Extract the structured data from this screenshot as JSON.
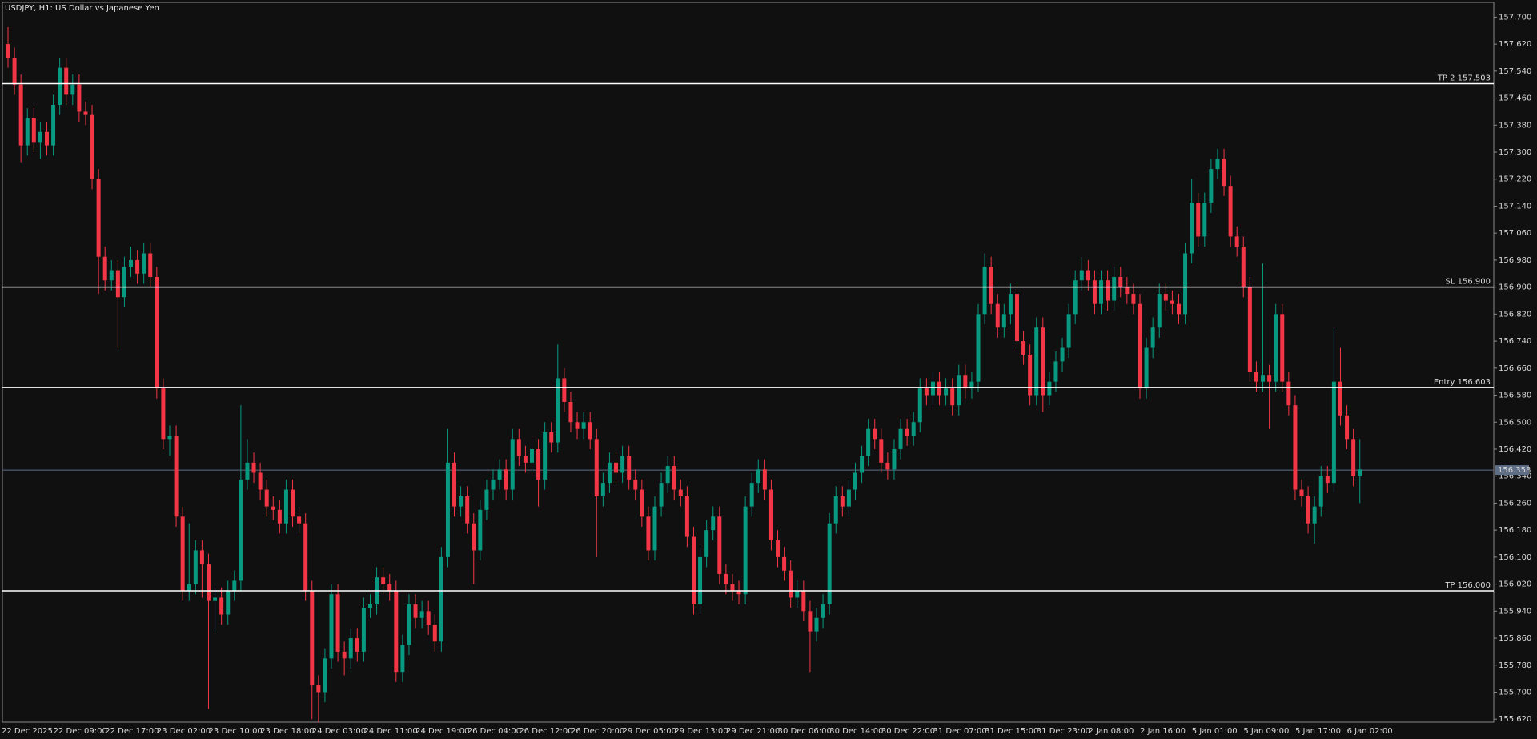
{
  "chart_data": {
    "type": "candlestick",
    "title": "USDJPY, H1:  US Dollar vs Japanese Yen",
    "categories": [
      "22 Dec 2025",
      null,
      null,
      null,
      null,
      null,
      null,
      null,
      "22 Dec 09:00",
      null,
      null,
      null,
      null,
      null,
      null,
      null,
      "22 Dec 17:00",
      null,
      null,
      null,
      null,
      null,
      null,
      null,
      "23 Dec 02:00",
      null,
      null,
      null,
      null,
      null,
      null,
      null,
      "23 Dec 10:00",
      null,
      null,
      null,
      null,
      null,
      null,
      null,
      "23 Dec 18:00",
      null,
      null,
      null,
      null,
      null,
      null,
      null,
      "24 Dec 03:00",
      null,
      null,
      null,
      null,
      null,
      null,
      null,
      "24 Dec 11:00",
      null,
      null,
      null,
      null,
      null,
      null,
      null,
      "24 Dec 19:00",
      null,
      null,
      null,
      null,
      null,
      null,
      null,
      "26 Dec 04:00",
      null,
      null,
      null,
      null,
      null,
      null,
      null,
      "26 Dec 12:00",
      null,
      null,
      null,
      null,
      null,
      null,
      null,
      "26 Dec 20:00",
      null,
      null,
      null,
      null,
      null,
      null,
      null,
      "29 Dec 05:00",
      null,
      null,
      null,
      null,
      null,
      null,
      null,
      "29 Dec 13:00",
      null,
      null,
      null,
      null,
      null,
      null,
      null,
      "29 Dec 21:00",
      null,
      null,
      null,
      null,
      null,
      null,
      null,
      "30 Dec 06:00",
      null,
      null,
      null,
      null,
      null,
      null,
      null,
      "30 Dec 14:00",
      null,
      null,
      null,
      null,
      null,
      null,
      null,
      "30 Dec 22:00",
      null,
      null,
      null,
      null,
      null,
      null,
      null,
      "31 Dec 07:00",
      null,
      null,
      null,
      null,
      null,
      null,
      null,
      "31 Dec 15:00",
      null,
      null,
      null,
      null,
      null,
      null,
      null,
      "31 Dec 23:00",
      null,
      null,
      null,
      null,
      null,
      null,
      null,
      "2 Jan 08:00",
      null,
      null,
      null,
      null,
      null,
      null,
      null,
      "2 Jan 16:00",
      null,
      null,
      null,
      null,
      null,
      null,
      null,
      "5 Jan 01:00",
      null,
      null,
      null,
      null,
      null,
      null,
      null,
      "5 Jan 09:00",
      null,
      null,
      null,
      null,
      null,
      null,
      null,
      "5 Jan 17:00",
      null,
      null,
      null,
      null,
      null,
      null,
      null,
      "6 Jan 02:00",
      null
    ],
    "open": [
      157.62,
      157.58,
      157.5,
      157.32,
      157.4,
      157.33,
      157.36,
      157.32,
      157.44,
      157.55,
      157.47,
      157.5,
      157.42,
      157.41,
      157.22,
      156.99,
      156.92,
      156.95,
      156.87,
      156.96,
      156.98,
      156.94,
      157.0,
      156.93,
      156.6,
      156.45,
      156.46,
      156.22,
      156.0,
      156.02,
      156.12,
      156.08,
      155.97,
      155.98,
      155.93,
      156.0,
      156.03,
      156.33,
      156.38,
      156.35,
      156.3,
      156.25,
      156.24,
      156.2,
      156.3,
      156.22,
      156.2,
      156.0,
      155.72,
      155.7,
      155.8,
      155.99,
      155.82,
      155.8,
      155.86,
      155.82,
      155.95,
      155.96,
      156.04,
      156.02,
      156.0,
      155.76,
      155.84,
      155.96,
      155.92,
      155.94,
      155.9,
      155.85,
      156.1,
      156.38,
      156.25,
      156.28,
      156.2,
      156.12,
      156.24,
      156.3,
      156.33,
      156.36,
      156.3,
      156.45,
      156.4,
      156.38,
      156.42,
      156.33,
      156.47,
      156.44,
      156.63,
      156.56,
      156.5,
      156.48,
      156.5,
      156.45,
      156.28,
      156.32,
      156.38,
      156.35,
      156.4,
      156.33,
      156.3,
      156.22,
      156.12,
      156.25,
      156.32,
      156.37,
      156.3,
      156.28,
      156.16,
      155.96,
      156.1,
      156.18,
      156.22,
      156.05,
      156.02,
      156.0,
      155.99,
      156.25,
      156.32,
      156.36,
      156.3,
      156.15,
      156.1,
      156.06,
      155.98,
      156.0,
      155.94,
      155.88,
      155.92,
      155.96,
      156.2,
      156.28,
      156.25,
      156.3,
      156.35,
      156.4,
      156.48,
      156.45,
      156.38,
      156.36,
      156.42,
      156.48,
      156.46,
      156.5,
      156.6,
      156.58,
      156.62,
      156.58,
      156.6,
      156.55,
      156.64,
      156.6,
      156.62,
      156.82,
      156.96,
      156.85,
      156.78,
      156.82,
      156.88,
      156.74,
      156.7,
      156.58,
      156.78,
      156.58,
      156.62,
      156.68,
      156.72,
      156.82,
      156.92,
      156.95,
      156.92,
      156.85,
      156.92,
      156.86,
      156.93,
      156.9,
      156.88,
      156.85,
      156.6,
      156.72,
      156.78,
      156.88,
      156.86,
      156.85,
      156.82,
      157.0,
      157.15,
      157.05,
      157.15,
      157.25,
      157.28,
      157.2,
      157.05,
      157.02,
      156.9,
      156.65,
      156.62,
      156.64,
      156.62,
      156.82,
      156.62,
      156.55,
      156.3,
      156.28,
      156.2,
      156.25,
      156.34,
      156.32,
      156.62,
      156.52,
      156.45,
      156.34
    ],
    "high": [
      157.67,
      157.61,
      157.53,
      157.43,
      157.43,
      157.39,
      157.39,
      157.47,
      157.58,
      157.58,
      157.53,
      157.53,
      157.45,
      157.44,
      157.25,
      157.02,
      156.98,
      156.98,
      156.99,
      157.02,
      157.01,
      157.03,
      157.03,
      156.96,
      156.63,
      156.49,
      156.49,
      156.25,
      156.2,
      156.15,
      156.15,
      156.11,
      156.01,
      156.01,
      156.03,
      156.06,
      156.55,
      156.45,
      156.41,
      156.38,
      156.33,
      156.28,
      156.27,
      156.33,
      156.33,
      156.25,
      156.23,
      156.03,
      155.75,
      155.83,
      156.02,
      156.02,
      155.85,
      155.89,
      155.89,
      155.98,
      155.99,
      156.07,
      156.07,
      156.05,
      156.03,
      155.87,
      155.99,
      155.99,
      155.97,
      155.97,
      155.93,
      156.13,
      156.48,
      156.41,
      156.31,
      156.31,
      156.23,
      156.27,
      156.33,
      156.36,
      156.39,
      156.39,
      156.48,
      156.48,
      156.43,
      156.45,
      156.45,
      156.5,
      156.5,
      156.73,
      156.66,
      156.59,
      156.53,
      156.53,
      156.53,
      156.48,
      156.35,
      156.41,
      156.41,
      156.43,
      156.43,
      156.36,
      156.33,
      156.25,
      156.28,
      156.35,
      156.4,
      156.4,
      156.33,
      156.31,
      156.19,
      156.13,
      156.21,
      156.25,
      156.25,
      156.08,
      156.05,
      156.03,
      156.28,
      156.35,
      156.39,
      156.39,
      156.33,
      156.18,
      156.13,
      156.09,
      156.03,
      156.03,
      155.97,
      155.95,
      155.99,
      156.23,
      156.31,
      156.31,
      156.33,
      156.38,
      156.43,
      156.51,
      156.51,
      156.48,
      156.41,
      156.45,
      156.51,
      156.51,
      156.53,
      156.63,
      156.63,
      156.65,
      156.65,
      156.63,
      156.63,
      156.67,
      156.67,
      156.65,
      156.85,
      157.0,
      156.99,
      156.88,
      156.85,
      156.91,
      156.91,
      156.77,
      156.73,
      156.81,
      156.81,
      156.65,
      156.71,
      156.75,
      156.85,
      156.95,
      156.99,
      156.98,
      156.95,
      156.95,
      156.95,
      156.96,
      156.96,
      156.93,
      156.91,
      156.88,
      156.75,
      156.81,
      156.91,
      156.91,
      156.89,
      156.88,
      157.03,
      157.22,
      157.18,
      157.18,
      157.28,
      157.31,
      157.31,
      157.23,
      157.08,
      157.05,
      156.93,
      156.68,
      156.97,
      156.67,
      156.85,
      156.85,
      156.65,
      156.58,
      156.33,
      156.31,
      156.28,
      156.37,
      156.37,
      156.78,
      156.72,
      156.55,
      156.48,
      156.45
    ],
    "low": [
      157.55,
      157.47,
      157.27,
      157.29,
      157.3,
      157.28,
      157.29,
      157.29,
      157.41,
      157.44,
      157.44,
      157.39,
      157.38,
      157.19,
      156.88,
      156.89,
      156.89,
      156.72,
      156.84,
      156.93,
      156.91,
      156.91,
      156.9,
      156.57,
      156.42,
      156.4,
      156.19,
      155.97,
      155.97,
      155.99,
      155.98,
      155.65,
      155.88,
      155.9,
      155.9,
      155.97,
      156.0,
      156.3,
      156.32,
      156.27,
      156.22,
      156.21,
      156.17,
      156.17,
      156.19,
      156.17,
      155.97,
      155.62,
      155.61,
      155.67,
      155.77,
      155.79,
      155.75,
      155.77,
      155.79,
      155.79,
      155.92,
      155.93,
      155.99,
      155.97,
      155.73,
      155.73,
      155.81,
      155.89,
      155.89,
      155.87,
      155.82,
      155.82,
      156.07,
      156.22,
      156.22,
      156.17,
      156.02,
      156.09,
      156.21,
      156.27,
      156.3,
      156.27,
      156.27,
      156.37,
      156.35,
      156.35,
      156.25,
      156.3,
      156.41,
      156.41,
      156.53,
      156.47,
      156.45,
      156.45,
      156.42,
      156.1,
      156.25,
      156.29,
      156.32,
      156.32,
      156.3,
      156.27,
      156.19,
      156.09,
      156.09,
      156.22,
      156.29,
      156.27,
      156.25,
      156.13,
      155.93,
      155.93,
      156.07,
      156.15,
      156.02,
      155.99,
      155.97,
      155.96,
      155.96,
      156.22,
      156.29,
      156.27,
      156.12,
      156.07,
      156.03,
      155.95,
      155.95,
      155.91,
      155.76,
      155.85,
      155.89,
      155.93,
      156.17,
      156.22,
      156.22,
      156.27,
      156.32,
      156.37,
      156.42,
      156.35,
      156.33,
      156.33,
      156.39,
      156.43,
      156.43,
      156.47,
      156.55,
      156.55,
      156.55,
      156.55,
      156.52,
      156.52,
      156.57,
      156.57,
      156.59,
      156.79,
      156.82,
      156.75,
      156.75,
      156.79,
      156.71,
      156.67,
      156.55,
      156.55,
      156.53,
      156.55,
      156.59,
      156.65,
      156.69,
      156.79,
      156.89,
      156.89,
      156.82,
      156.82,
      156.83,
      156.83,
      156.87,
      156.85,
      156.82,
      156.57,
      156.57,
      156.69,
      156.75,
      156.83,
      156.82,
      156.79,
      156.79,
      156.97,
      157.02,
      157.02,
      157.12,
      157.22,
      157.17,
      157.02,
      156.99,
      156.87,
      156.62,
      156.59,
      156.59,
      156.48,
      156.59,
      156.59,
      156.52,
      156.27,
      156.25,
      156.17,
      156.14,
      156.22,
      156.29,
      156.29,
      156.49,
      156.42,
      156.31,
      156.26
    ],
    "close": [
      157.58,
      157.5,
      157.32,
      157.4,
      157.33,
      157.36,
      157.32,
      157.44,
      157.55,
      157.47,
      157.5,
      157.42,
      157.41,
      157.22,
      156.99,
      156.92,
      156.95,
      156.87,
      156.96,
      156.98,
      156.94,
      157.0,
      156.93,
      156.6,
      156.45,
      156.46,
      156.22,
      156.0,
      156.02,
      156.12,
      156.08,
      155.97,
      155.98,
      155.93,
      156.0,
      156.03,
      156.33,
      156.38,
      156.35,
      156.3,
      156.25,
      156.24,
      156.2,
      156.3,
      156.22,
      156.2,
      156.0,
      155.72,
      155.7,
      155.8,
      155.99,
      155.82,
      155.8,
      155.86,
      155.82,
      155.95,
      155.96,
      156.04,
      156.02,
      156.0,
      155.76,
      155.84,
      155.96,
      155.92,
      155.94,
      155.9,
      155.85,
      156.1,
      156.38,
      156.25,
      156.28,
      156.2,
      156.12,
      156.24,
      156.3,
      156.33,
      156.36,
      156.3,
      156.45,
      156.4,
      156.38,
      156.42,
      156.33,
      156.47,
      156.44,
      156.63,
      156.56,
      156.5,
      156.48,
      156.5,
      156.45,
      156.28,
      156.32,
      156.38,
      156.35,
      156.4,
      156.33,
      156.3,
      156.22,
      156.12,
      156.25,
      156.32,
      156.37,
      156.3,
      156.28,
      156.16,
      155.96,
      156.1,
      156.18,
      156.22,
      156.05,
      156.02,
      156.0,
      155.99,
      156.25,
      156.32,
      156.36,
      156.3,
      156.15,
      156.1,
      156.06,
      155.98,
      156.0,
      155.94,
      155.88,
      155.92,
      155.96,
      156.2,
      156.28,
      156.25,
      156.3,
      156.35,
      156.4,
      156.48,
      156.45,
      156.38,
      156.36,
      156.42,
      156.48,
      156.46,
      156.5,
      156.6,
      156.58,
      156.62,
      156.58,
      156.6,
      156.55,
      156.64,
      156.6,
      156.62,
      156.82,
      156.96,
      156.85,
      156.78,
      156.82,
      156.88,
      156.74,
      156.7,
      156.58,
      156.78,
      156.58,
      156.62,
      156.68,
      156.72,
      156.82,
      156.92,
      156.95,
      156.92,
      156.85,
      156.92,
      156.86,
      156.93,
      156.9,
      156.88,
      156.85,
      156.6,
      156.72,
      156.78,
      156.88,
      156.86,
      156.85,
      156.82,
      157.0,
      157.15,
      157.05,
      157.15,
      157.25,
      157.28,
      157.2,
      157.05,
      157.02,
      156.9,
      156.65,
      156.62,
      156.64,
      156.62,
      156.82,
      156.62,
      156.55,
      156.3,
      156.28,
      156.2,
      156.25,
      156.34,
      156.32,
      156.62,
      156.52,
      156.45,
      156.34,
      156.36
    ],
    "up_color": "#089981",
    "down_color": "#f23645",
    "ylim": [
      155.611,
      157.742
    ],
    "yticks": [
      {
        "value": 157.7,
        "label": "157.700"
      },
      {
        "value": 157.62,
        "label": "157.620"
      },
      {
        "value": 157.54,
        "label": "157.540"
      },
      {
        "value": 157.46,
        "label": "157.460"
      },
      {
        "value": 157.38,
        "label": "157.380"
      },
      {
        "value": 157.3,
        "label": "157.300"
      },
      {
        "value": 157.22,
        "label": "157.220"
      },
      {
        "value": 157.14,
        "label": "157.140"
      },
      {
        "value": 157.06,
        "label": "157.060"
      },
      {
        "value": 156.98,
        "label": "156.980"
      },
      {
        "value": 156.9,
        "label": "156.900"
      },
      {
        "value": 156.82,
        "label": "156.820"
      },
      {
        "value": 156.74,
        "label": "156.740"
      },
      {
        "value": 156.66,
        "label": "156.660"
      },
      {
        "value": 156.58,
        "label": "156.580"
      },
      {
        "value": 156.5,
        "label": "156.500"
      },
      {
        "value": 156.42,
        "label": "156.420"
      },
      {
        "value": 156.34,
        "label": "156.340"
      },
      {
        "value": 156.26,
        "label": "156.260"
      },
      {
        "value": 156.18,
        "label": "156.180"
      },
      {
        "value": 156.1,
        "label": "156.100"
      },
      {
        "value": 156.02,
        "label": "156.020"
      },
      {
        "value": 155.94,
        "label": "155.940"
      },
      {
        "value": 155.86,
        "label": "155.860"
      },
      {
        "value": 155.78,
        "label": "155.780"
      },
      {
        "value": 155.7,
        "label": "155.700"
      },
      {
        "value": 155.62,
        "label": "155.620"
      }
    ],
    "grid": false,
    "levels": [
      {
        "label": "TP 2 157.503",
        "value": 157.503
      },
      {
        "label": "SL 156.900",
        "value": 156.9
      },
      {
        "label": "Entry 156.603",
        "value": 156.603
      },
      {
        "label": "TP 156.000",
        "value": 156.0
      }
    ],
    "level_color": "#ffffff",
    "current_price": 156.358,
    "current_price_color": "#5d6e86"
  }
}
